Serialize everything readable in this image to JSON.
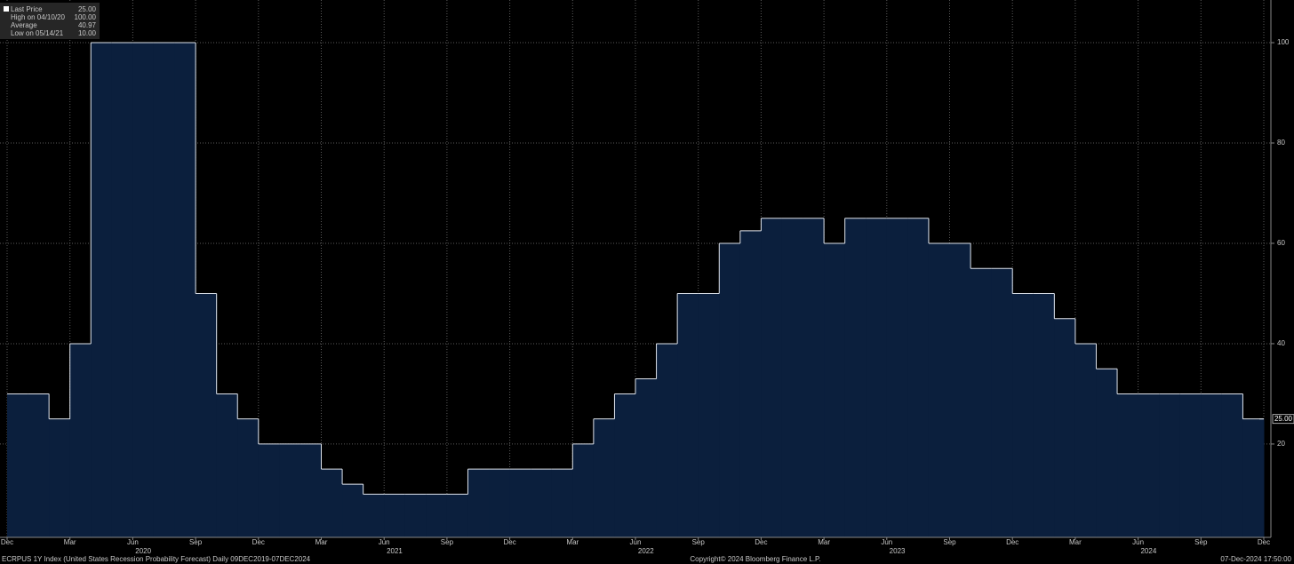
{
  "chart_data": {
    "type": "step-area",
    "legend": [
      {
        "label": "Last Price",
        "value": "25.00"
      },
      {
        "label": "High on 04/10/20",
        "value": "100.00"
      },
      {
        "label": "Average",
        "value": "40.97"
      },
      {
        "label": "Low on 05/14/21",
        "value": "10.00"
      }
    ],
    "x": [
      "2019-12",
      "2020-01",
      "2020-02",
      "2020-03",
      "2020-04",
      "2020-05",
      "2020-06",
      "2020-07",
      "2020-08",
      "2020-09",
      "2020-10",
      "2020-11",
      "2020-12",
      "2021-01",
      "2021-02",
      "2021-03",
      "2021-04",
      "2021-05",
      "2021-06",
      "2021-07",
      "2021-08",
      "2021-09",
      "2021-10",
      "2021-11",
      "2021-12",
      "2022-01",
      "2022-02",
      "2022-03",
      "2022-04",
      "2022-05",
      "2022-06",
      "2022-07",
      "2022-08",
      "2022-09",
      "2022-10",
      "2022-11",
      "2022-12",
      "2023-01",
      "2023-02",
      "2023-03",
      "2023-04",
      "2023-05",
      "2023-06",
      "2023-07",
      "2023-08",
      "2023-09",
      "2023-10",
      "2023-11",
      "2023-12",
      "2024-01",
      "2024-02",
      "2024-03",
      "2024-04",
      "2024-05",
      "2024-06",
      "2024-07",
      "2024-08",
      "2024-09",
      "2024-10",
      "2024-11",
      "2024-12"
    ],
    "series": [
      {
        "name": "Last Price",
        "color": "#dfe4ec",
        "fill": "#0b1f3d",
        "values": [
          30,
          30,
          25,
          40,
          100,
          100,
          100,
          100,
          100,
          50,
          30,
          25,
          20,
          20,
          20,
          15,
          12,
          10,
          10,
          10,
          10,
          10,
          15,
          15,
          15,
          15,
          15,
          20,
          25,
          30,
          33,
          40,
          50,
          50,
          60,
          62.5,
          65,
          65,
          65,
          60,
          65,
          65,
          65,
          65,
          60,
          60,
          55,
          55,
          50,
          50,
          45,
          40,
          35,
          30,
          30,
          30,
          30,
          30,
          30,
          25,
          25
        ]
      }
    ],
    "xlim": [
      "2019-12",
      "2024-12"
    ],
    "xticks": [
      {
        "value": "2019-12",
        "label": "Dec"
      },
      {
        "value": "2020-03",
        "label": "Mar"
      },
      {
        "value": "2020-06",
        "label": "Jun"
      },
      {
        "value": "2020-09",
        "label": "Sep"
      },
      {
        "value": "2020-12",
        "label": "Dec"
      },
      {
        "value": "2021-03",
        "label": "Mar"
      },
      {
        "value": "2021-06",
        "label": "Jun"
      },
      {
        "value": "2021-09",
        "label": "Sep"
      },
      {
        "value": "2021-12",
        "label": "Dec"
      },
      {
        "value": "2022-03",
        "label": "Mar"
      },
      {
        "value": "2022-06",
        "label": "Jun"
      },
      {
        "value": "2022-09",
        "label": "Sep"
      },
      {
        "value": "2022-12",
        "label": "Dec"
      },
      {
        "value": "2023-03",
        "label": "Mar"
      },
      {
        "value": "2023-06",
        "label": "Jun"
      },
      {
        "value": "2023-09",
        "label": "Sep"
      },
      {
        "value": "2023-12",
        "label": "Dec"
      },
      {
        "value": "2024-03",
        "label": "Mar"
      },
      {
        "value": "2024-06",
        "label": "Jun"
      },
      {
        "value": "2024-09",
        "label": "Sep"
      },
      {
        "value": "2024-12",
        "label": "Dec"
      }
    ],
    "years": [
      "2020",
      "2021",
      "2022",
      "2023",
      "2024"
    ],
    "ylim": [
      1.4,
      108.5
    ],
    "yticks": [
      20,
      40,
      60,
      80,
      100
    ],
    "grid": true,
    "footer": {
      "left": "ECRPUS 1Y Index (United States Recession Probability Forecast)  Daily 09DEC2019-07DEC2024",
      "center": "Copyright© 2024 Bloomberg Finance L.P.",
      "right": "07-Dec-2024 17:50:00"
    }
  }
}
